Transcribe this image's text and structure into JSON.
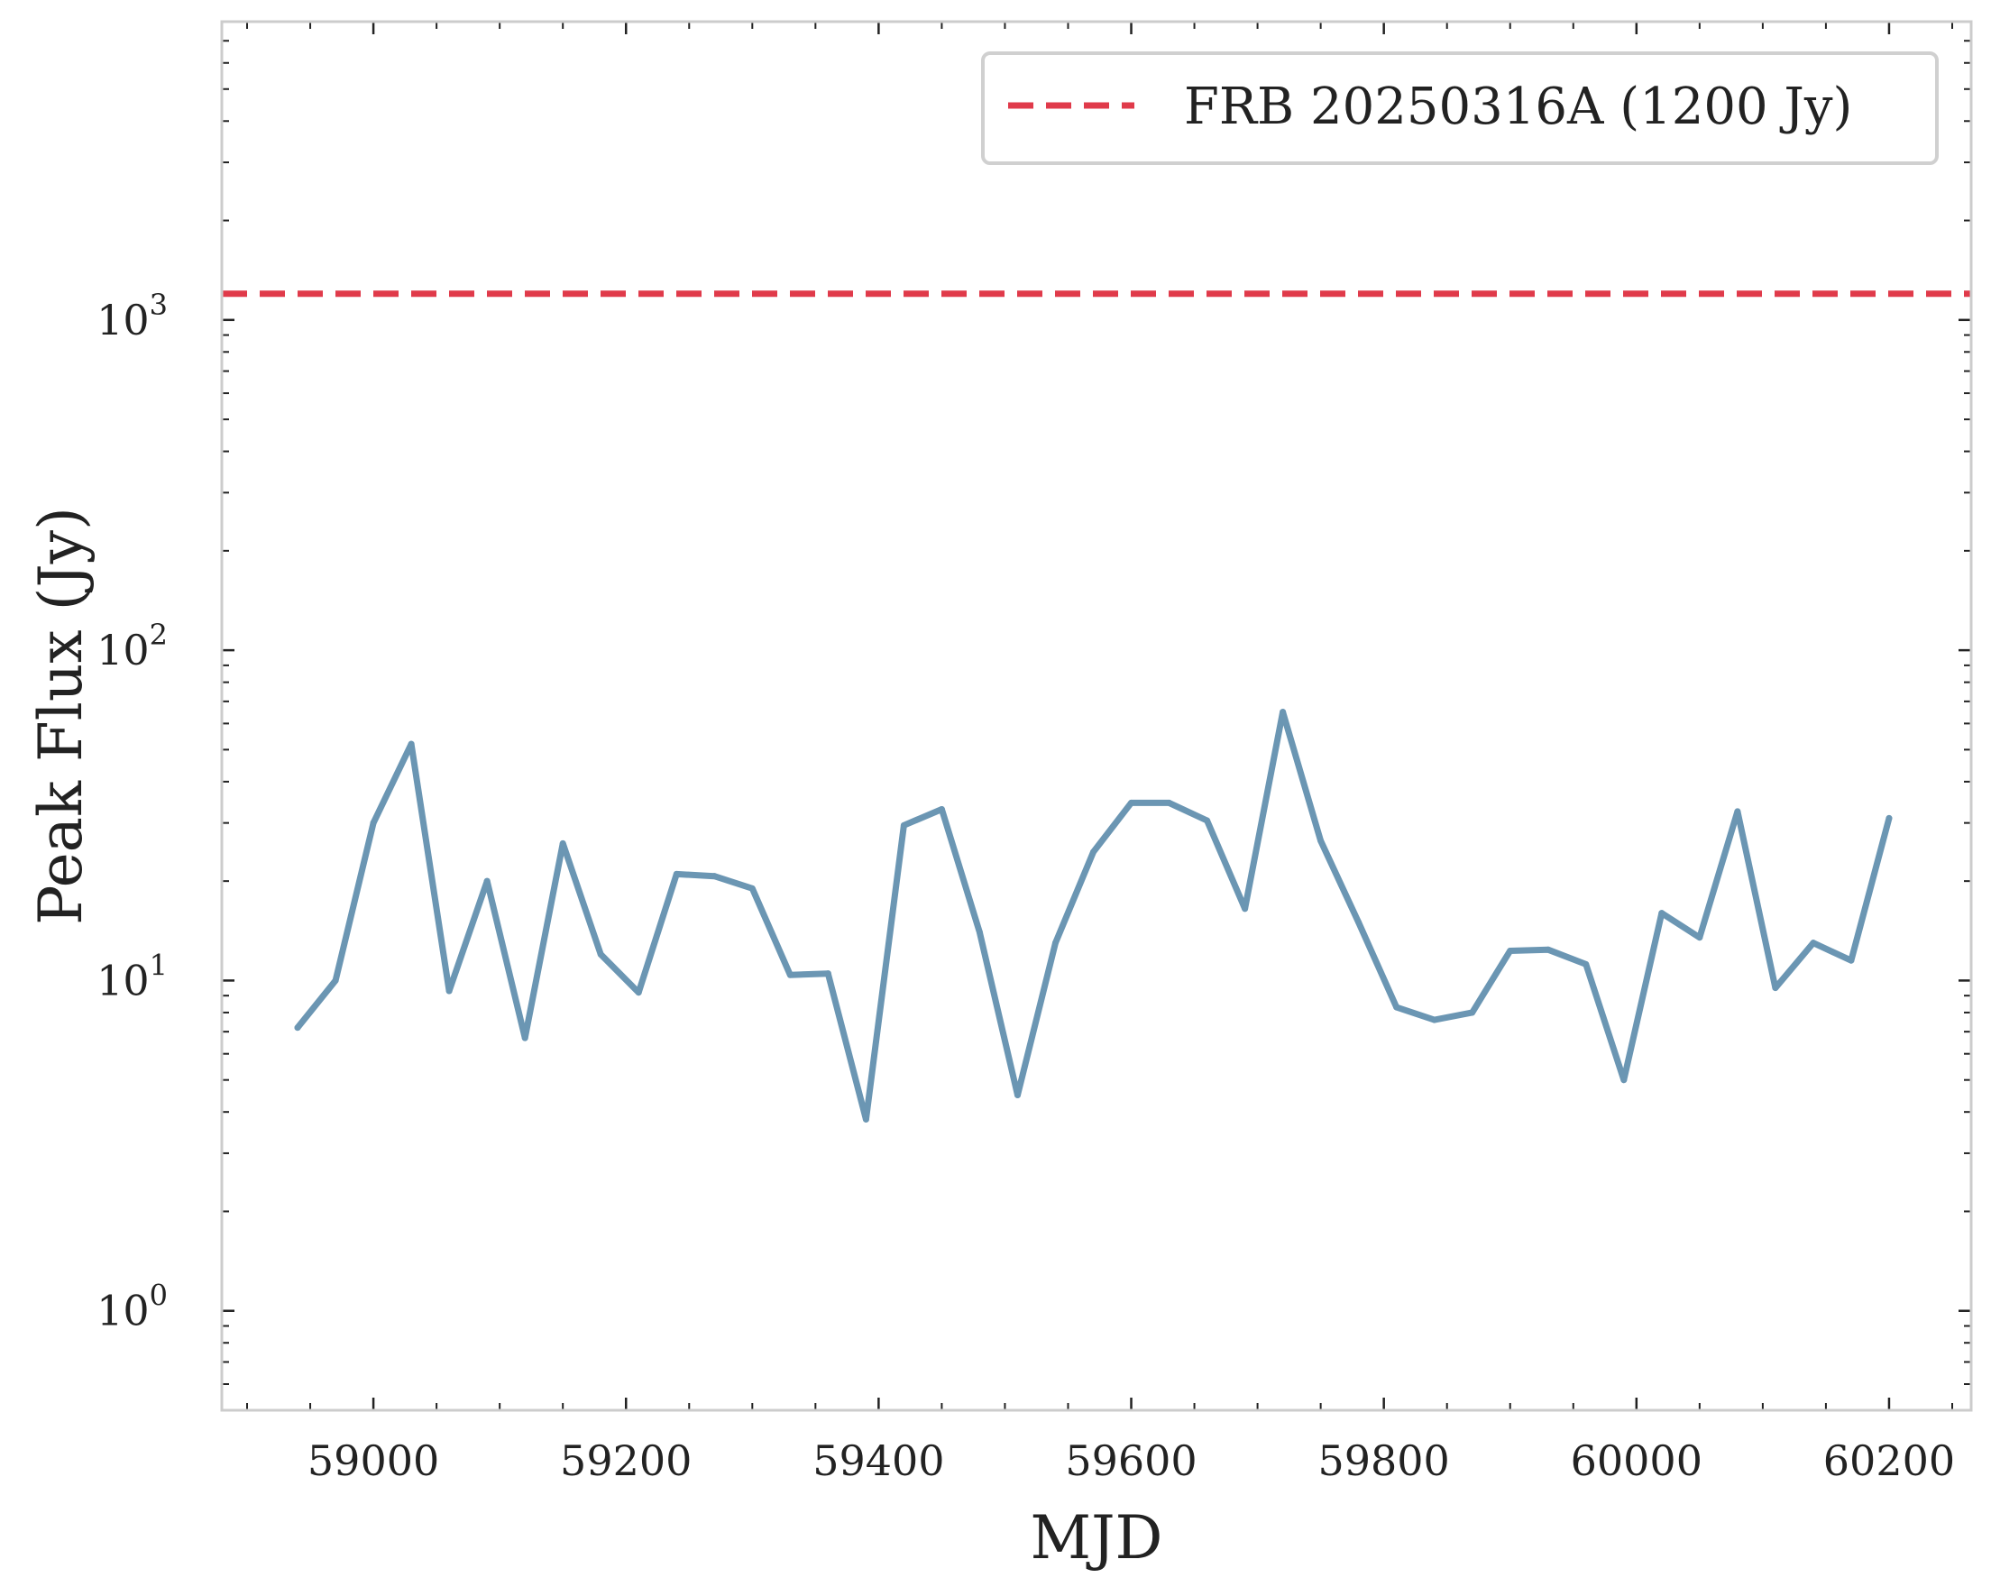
{
  "chart_data": {
    "type": "line",
    "title": "",
    "xlabel": "MJD",
    "ylabel": "Peak Flux (Jy)",
    "xlim": [
      58880,
      60265
    ],
    "ylim": [
      0.5,
      8000
    ],
    "yscale": "log",
    "x_ticks": [
      59000,
      59200,
      59400,
      59600,
      59800,
      60000,
      60200
    ],
    "x_tick_labels": [
      "59000",
      "59200",
      "59400",
      "59600",
      "59800",
      "60000",
      "60200"
    ],
    "y_ticks": [
      1,
      10,
      100,
      1000
    ],
    "y_tick_labels": [
      {
        "base": "10",
        "exp": "0"
      },
      {
        "base": "10",
        "exp": "1"
      },
      {
        "base": "10",
        "exp": "2"
      },
      {
        "base": "10",
        "exp": "3"
      }
    ],
    "grid": false,
    "legend_position": "top-right",
    "series": [
      {
        "color": "#6b96b3",
        "x": [
          58940,
          58970,
          59000,
          59030,
          59060,
          59090,
          59120,
          59150,
          59180,
          59210,
          59240,
          59270,
          59300,
          59330,
          59360,
          59390,
          59420,
          59450,
          59480,
          59510,
          59540,
          59570,
          59600,
          59630,
          59660,
          59690,
          59720,
          59750,
          59780,
          59810,
          59840,
          59870,
          59900,
          59930,
          59960,
          59990,
          60020,
          60050,
          60080,
          60110,
          60140,
          60170,
          60200
        ],
        "y": [
          7.2,
          10,
          30,
          52,
          9.3,
          20,
          6.7,
          26,
          12,
          9.2,
          21,
          20.7,
          19,
          10.4,
          10.5,
          3.8,
          29.5,
          33,
          14,
          4.5,
          13,
          24.5,
          34.5,
          34.5,
          30.5,
          16.5,
          65,
          26.5,
          15,
          8.3,
          7.6,
          8,
          12.3,
          12.4,
          11.2,
          5,
          16,
          13.5,
          32.5,
          9.5,
          13,
          11.5,
          31
        ]
      },
      {
        "name": "FRB 20250316A (1200 Jy)",
        "type": "hline",
        "y": 1200,
        "color": "#e03a4a",
        "style": "dashed"
      }
    ]
  }
}
